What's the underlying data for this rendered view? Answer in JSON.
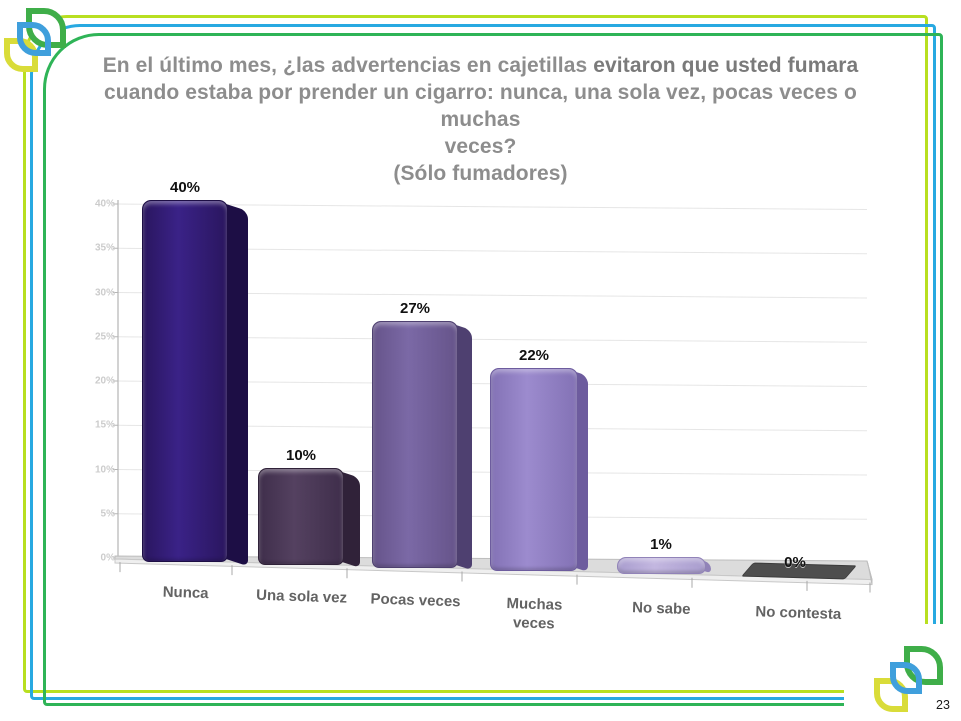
{
  "slide": {
    "title": {
      "lines": [
        {
          "segments": [
            {
              "text": "En el último mes, ¿las advertencias en cajetillas ",
              "bold": false
            },
            {
              "text": "evitaron que usted fumara",
              "bold": true
            }
          ]
        },
        {
          "segments": [
            {
              "text": "cuando estaba por prender un cigarro: nunca, una sola vez, pocas veces o muchas",
              "bold": false
            }
          ]
        },
        {
          "segments": [
            {
              "text": "veces?",
              "bold": false
            }
          ]
        },
        {
          "segments": [
            {
              "text": "(Sólo fumadores)",
              "bold": false
            }
          ]
        }
      ]
    },
    "page_number": "23",
    "frame_colors": {
      "outer": "#b8df20",
      "middle": "#28a9e1",
      "inner": "#2fb457"
    },
    "logo_colors": {
      "green": "#3fae49",
      "blue": "#3f9fdc",
      "yellow": "#d9dc39"
    }
  },
  "chart_data": {
    "type": "bar",
    "style": "3d-perspective",
    "categories": [
      "Nunca",
      "Una sola vez",
      "Pocas veces",
      "Muchas veces",
      "No sabe",
      "No contesta"
    ],
    "values": [
      40,
      10,
      27,
      22,
      1,
      0
    ],
    "data_labels": [
      "40%",
      "10%",
      "27%",
      "22%",
      "1%",
      "0%"
    ],
    "y_ticks": [
      "0%",
      "5%",
      "10%",
      "15%",
      "20%",
      "25%",
      "30%",
      "35%",
      "40%"
    ],
    "ylim": [
      0,
      40
    ],
    "grid": true,
    "legend": "none",
    "xlabel": "",
    "ylabel": "",
    "bar_colors_front": [
      "#2e1969",
      "#473455",
      "#6e5b96",
      "#8f7dc2",
      "#b2a4d4",
      "#4e4e4e"
    ],
    "bar_colors_side": [
      "#1d0e45",
      "#302239",
      "#4e4070",
      "#6d5c9e",
      "#9183b8",
      "#3c3c3c"
    ],
    "value_label_color": "#111111",
    "category_label_color": "#636363",
    "axis_label_color": "#cccccc",
    "gridline_color": "#e6e6e6",
    "floor_color": "#dcdcdc"
  }
}
